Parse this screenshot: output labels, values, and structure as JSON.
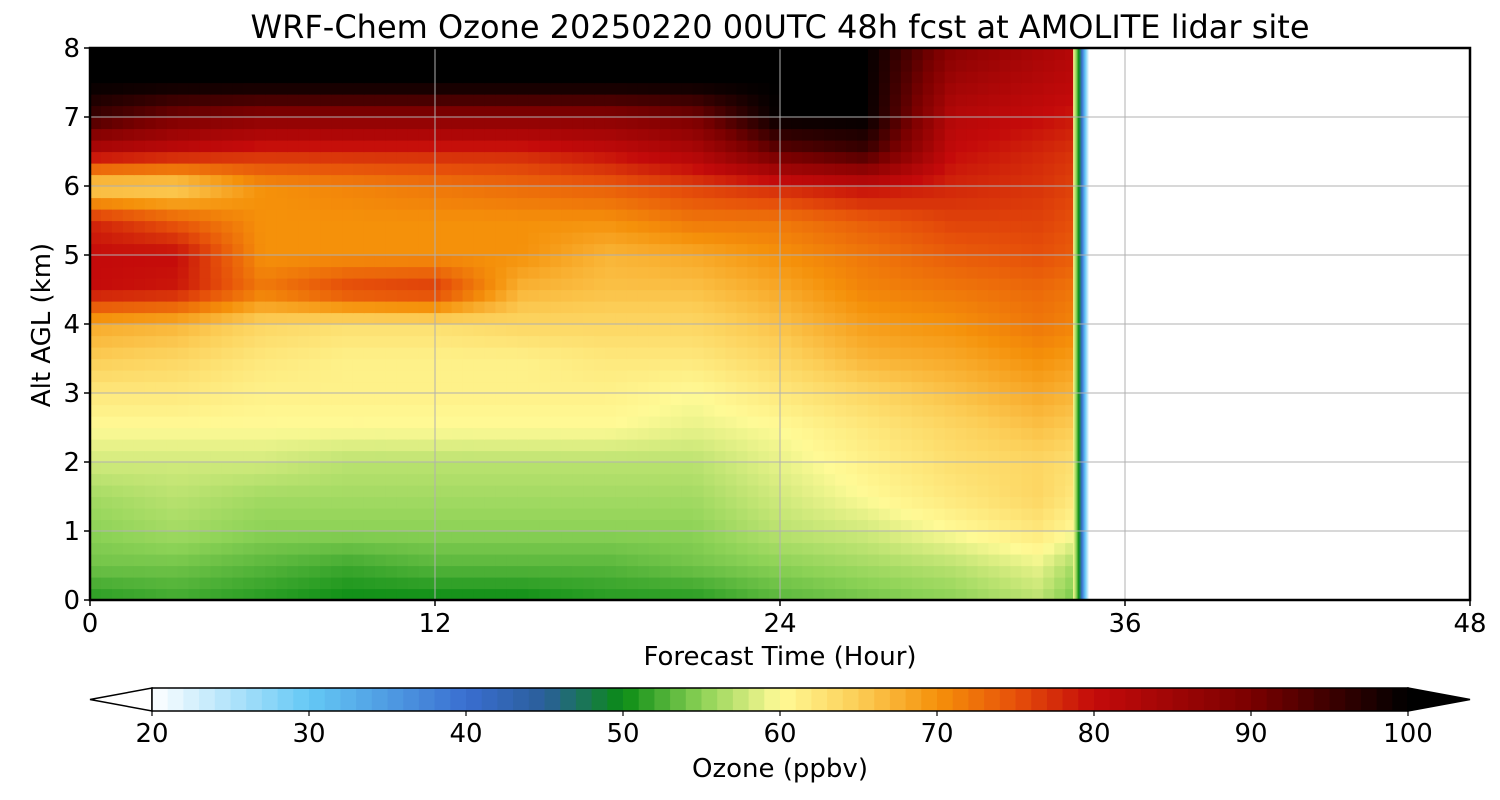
{
  "chart_data": {
    "type": "heatmap",
    "title": "WRF-Chem Ozone  20250220 00UTC 48h fcst at AMOLITE lidar site",
    "xlabel": "Forecast Time (Hour)",
    "ylabel": "Alt AGL (km)",
    "xlim": [
      0,
      48
    ],
    "ylim": [
      0,
      8
    ],
    "xticks": [
      "0",
      "12",
      "24",
      "36",
      "48"
    ],
    "yticks": [
      "0",
      "1",
      "2",
      "3",
      "4",
      "5",
      "6",
      "7",
      "8"
    ],
    "grid": true,
    "data_end_hour": 34.3,
    "x": [
      0,
      3,
      6,
      9,
      12,
      15,
      18,
      21,
      24,
      27,
      30,
      33,
      34.3
    ],
    "y": [
      0,
      0.5,
      1,
      1.5,
      2,
      2.5,
      3,
      3.5,
      4,
      4.5,
      5,
      5.5,
      6,
      6.5,
      7,
      7.5,
      8
    ],
    "z_ppbv": [
      [
        51,
        52,
        51,
        50,
        50,
        50,
        51,
        51,
        53,
        54,
        55,
        57,
        54
      ],
      [
        54,
        54,
        53,
        52,
        53,
        53,
        53,
        54,
        55,
        56,
        57,
        59,
        56
      ],
      [
        55,
        56,
        55,
        55,
        55,
        55,
        55,
        55,
        57,
        58,
        60,
        62,
        60
      ],
      [
        56,
        57,
        56,
        56,
        56,
        56,
        56,
        56,
        58,
        60,
        62,
        64,
        62
      ],
      [
        58,
        58,
        58,
        57,
        57,
        57,
        57,
        57,
        59,
        61,
        63,
        64,
        63
      ],
      [
        60,
        60,
        60,
        60,
        60,
        60,
        60,
        59,
        60,
        62,
        64,
        66,
        65
      ],
      [
        62,
        62,
        61,
        61,
        61,
        61,
        61,
        60,
        62,
        64,
        66,
        68,
        67
      ],
      [
        65,
        64,
        62,
        61,
        61,
        61,
        62,
        62,
        64,
        67,
        68,
        70,
        69
      ],
      [
        68,
        67,
        64,
        63,
        63,
        64,
        64,
        64,
        66,
        69,
        70,
        72,
        71
      ],
      [
        80,
        79,
        72,
        76,
        77,
        67,
        66,
        66,
        68,
        71,
        72,
        73,
        72
      ],
      [
        80,
        80,
        70,
        70,
        70,
        70,
        67,
        68,
        70,
        72,
        74,
        75,
        74
      ],
      [
        78,
        74,
        70,
        70,
        70,
        70,
        70,
        72,
        72,
        74,
        76,
        76,
        75
      ],
      [
        64,
        64,
        70,
        71,
        72,
        73,
        74,
        76,
        78,
        80,
        78,
        77,
        76
      ],
      [
        82,
        80,
        78,
        78,
        78,
        78,
        80,
        83,
        92,
        95,
        80,
        78,
        77
      ],
      [
        95,
        90,
        88,
        88,
        88,
        88,
        88,
        90,
        100,
        100,
        82,
        80,
        79
      ],
      [
        100,
        100,
        100,
        100,
        100,
        100,
        100,
        100,
        100,
        100,
        85,
        82,
        81
      ],
      [
        100,
        100,
        100,
        100,
        100,
        100,
        100,
        100,
        100,
        100,
        88,
        84,
        82
      ]
    ],
    "colorbar": {
      "label": "Ozone  (ppbv)",
      "min": 20,
      "max": 100,
      "ticks": [
        "20",
        "30",
        "40",
        "50",
        "60",
        "70",
        "80",
        "90",
        "100"
      ],
      "extend": "both",
      "stops": [
        {
          "v": 20,
          "c": "#ffffff"
        },
        {
          "v": 30,
          "c": "#64c8f5"
        },
        {
          "v": 40,
          "c": "#3a6ed0"
        },
        {
          "v": 45,
          "c": "#2a5e9a"
        },
        {
          "v": 50,
          "c": "#0a8c14"
        },
        {
          "v": 55,
          "c": "#8cd256"
        },
        {
          "v": 60,
          "c": "#fffa96"
        },
        {
          "v": 65,
          "c": "#fccd56"
        },
        {
          "v": 70,
          "c": "#f5910a"
        },
        {
          "v": 75,
          "c": "#e6500a"
        },
        {
          "v": 80,
          "c": "#c40a0a"
        },
        {
          "v": 90,
          "c": "#7a0000"
        },
        {
          "v": 100,
          "c": "#000000"
        }
      ]
    }
  }
}
